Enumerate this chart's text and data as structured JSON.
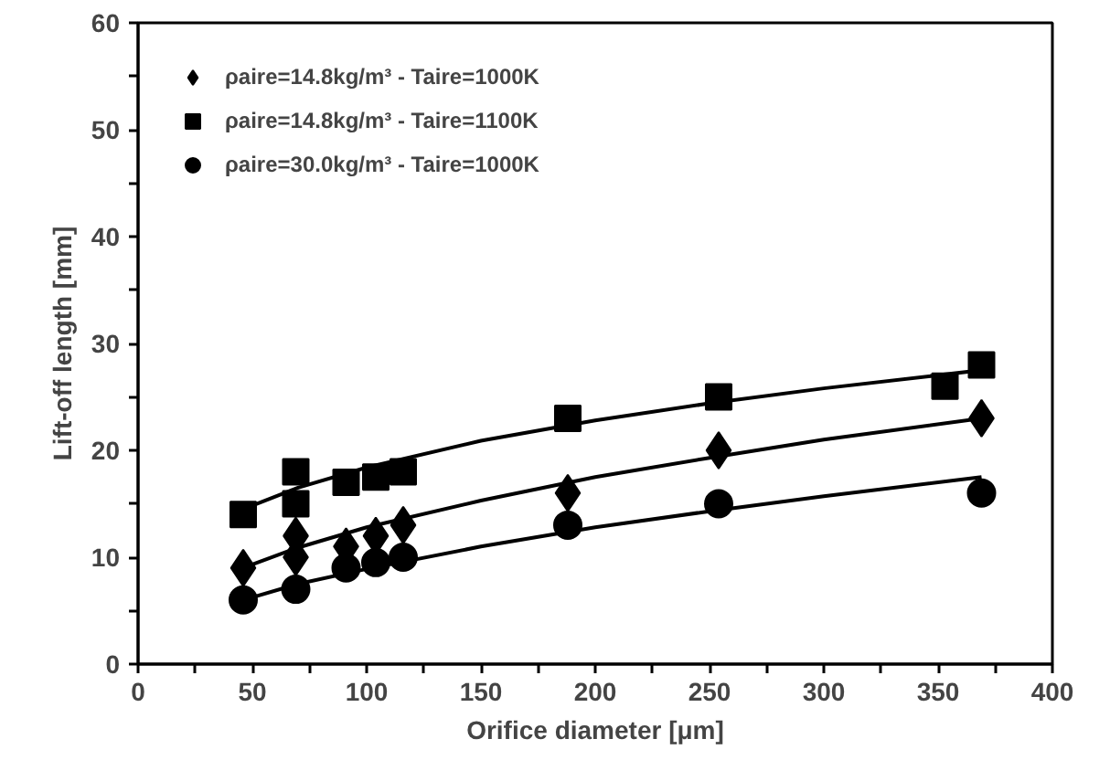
{
  "chart_data": {
    "type": "scatter",
    "xlabel": "Orifice diameter [μm]",
    "ylabel": "Lift-off length [mm]",
    "series": [
      {
        "name": "ρaire=14.8kg/m³ - Taire=1000K",
        "color": "#000000",
        "marker": "diamond",
        "x": [
          46,
          69,
          69,
          91,
          104,
          116,
          188,
          254,
          369
        ],
        "values": [
          9,
          10,
          12,
          11,
          12,
          13,
          16,
          20,
          23
        ]
      },
      {
        "name": "ρaire=14.8kg/m³ - Taire=1100K",
        "color": "#000000",
        "marker": "square",
        "x": [
          46,
          69,
          69,
          91,
          104,
          116,
          188,
          254,
          353,
          369
        ],
        "values": [
          14,
          15,
          18,
          17,
          17.5,
          18,
          23,
          25,
          26,
          28
        ]
      },
      {
        "name": "ρaire=30.0kg/m³ - Taire=1000K",
        "color": "#000000",
        "marker": "circle",
        "x": [
          46,
          69,
          91,
          104,
          116,
          188,
          254,
          369
        ],
        "values": [
          6,
          7,
          9,
          9.5,
          10,
          13,
          15,
          16
        ]
      },
      {
        "type": "line",
        "color": "#000000",
        "x": [
          46,
          70,
          100,
          150,
          200,
          250,
          300,
          369
        ],
        "values": [
          9,
          10.9,
          12.8,
          15.3,
          17.5,
          19.3,
          21.0,
          23
        ]
      },
      {
        "type": "line",
        "color": "#000000",
        "x": [
          46,
          70,
          100,
          150,
          200,
          250,
          300,
          369
        ],
        "values": [
          14.5,
          16.5,
          18.4,
          20.9,
          22.8,
          24.4,
          25.8,
          27.5
        ]
      },
      {
        "type": "line",
        "color": "#000000",
        "x": [
          46,
          70,
          100,
          150,
          200,
          250,
          300,
          369
        ],
        "values": [
          6,
          7.5,
          8.9,
          11.0,
          12.8,
          14.3,
          15.7,
          17.5
        ]
      }
    ],
    "xlim": [
      0,
      400
    ],
    "ylim": [
      0,
      60
    ],
    "xticks": [
      0,
      {
        "value": 25,
        "label": null
      },
      50,
      {
        "value": 75,
        "label": null
      },
      100,
      {
        "value": 125,
        "label": null
      },
      150,
      {
        "value": 175,
        "label": null
      },
      200,
      {
        "value": 225,
        "label": null
      },
      250,
      {
        "value": 275,
        "label": null
      },
      300,
      {
        "value": 325,
        "label": null
      },
      350,
      {
        "value": 375,
        "label": null
      },
      400
    ],
    "yticks": [
      0,
      {
        "value": 5,
        "label": null
      },
      10,
      {
        "value": 15,
        "label": null
      },
      20,
      {
        "value": 25,
        "label": null
      },
      30,
      {
        "value": 35,
        "label": null
      },
      40,
      {
        "value": 45,
        "label": null
      },
      50,
      {
        "value": 55,
        "label": null
      },
      60
    ],
    "grid": false,
    "legend": "top left"
  }
}
